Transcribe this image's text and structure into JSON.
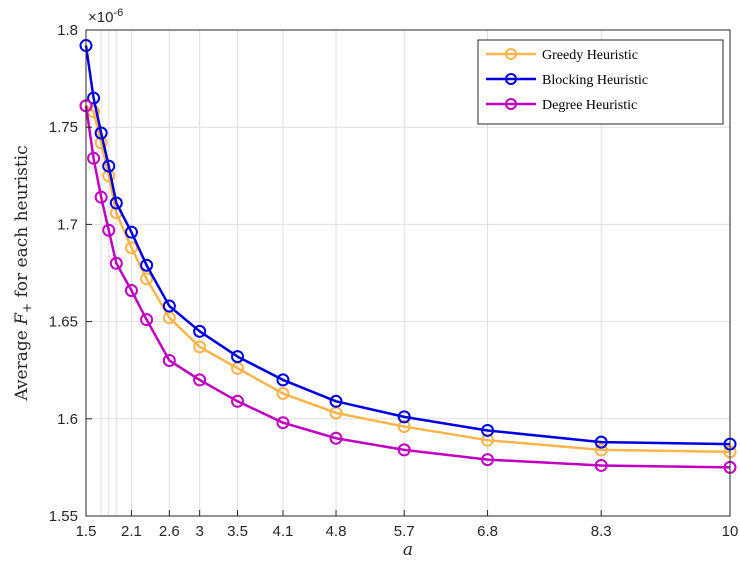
{
  "chart_data": {
    "type": "line",
    "xlabel": "a",
    "ylabel_parts": [
      "Average ",
      "F",
      "+",
      " for each heuristic"
    ],
    "y_multiplier": "×10",
    "y_multiplier_exp": "-6",
    "x_ticks": [
      1.5,
      2.1,
      2.6,
      3,
      3.5,
      4.1,
      4.8,
      5.7,
      6.8,
      8.3,
      10
    ],
    "x_minor_grid": [
      1.7,
      1.8,
      1.9
    ],
    "y_ticks": [
      1.55,
      1.6,
      1.65,
      1.7,
      1.75,
      1.8
    ],
    "xlim": [
      1.5,
      10
    ],
    "ylim": [
      1.55,
      1.8
    ],
    "grid": true,
    "legend_position": "top-right",
    "x": [
      1.5,
      1.6,
      1.7,
      1.8,
      1.9,
      2.1,
      2.3,
      2.6,
      3.0,
      3.5,
      4.1,
      4.8,
      5.7,
      6.8,
      8.3,
      10
    ],
    "series": [
      {
        "name": "Greedy Heuristic",
        "color": "#FDB44B",
        "values": [
          1.761,
          1.758,
          1.742,
          1.725,
          1.706,
          1.688,
          1.672,
          1.652,
          1.637,
          1.626,
          1.613,
          1.603,
          1.596,
          1.589,
          1.584,
          1.583
        ]
      },
      {
        "name": "Blocking Heuristic",
        "color": "#0000E0",
        "values": [
          1.792,
          1.765,
          1.747,
          1.73,
          1.711,
          1.696,
          1.679,
          1.658,
          1.645,
          1.632,
          1.62,
          1.609,
          1.601,
          1.594,
          1.588,
          1.587
        ]
      },
      {
        "name": "Degree Heuristic",
        "color": "#C000C0",
        "values": [
          1.761,
          1.734,
          1.714,
          1.697,
          1.68,
          1.666,
          1.651,
          1.63,
          1.62,
          1.609,
          1.598,
          1.59,
          1.584,
          1.579,
          1.576,
          1.575
        ]
      }
    ]
  }
}
